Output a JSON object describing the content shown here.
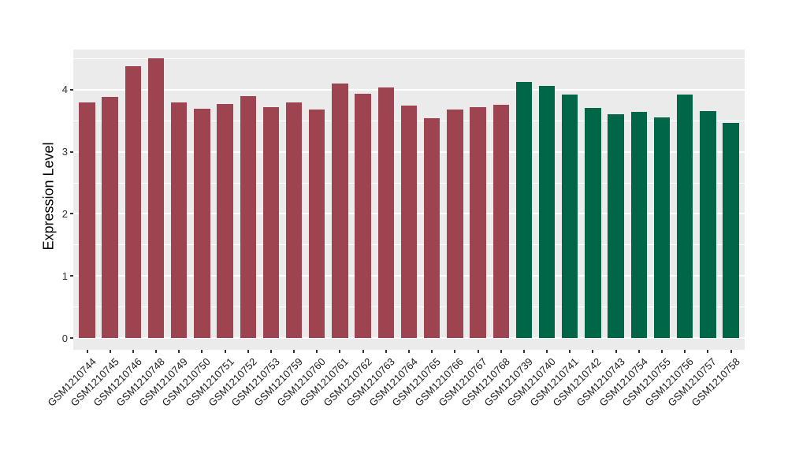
{
  "chart_data": {
    "type": "bar",
    "title": "",
    "xlabel": "",
    "ylabel": "Expression Level",
    "ylim": [
      0,
      4.65
    ],
    "yticks": [
      0,
      1,
      2,
      3,
      4
    ],
    "minor_gridlines": [
      0.5,
      1.5,
      2.5,
      3.5,
      4.5
    ],
    "grid": "on",
    "legend_position": "none",
    "panel_background": "#EBEBEB",
    "grid_color": "#FFFFFF",
    "axis_text_color": "#303030",
    "group_colors": {
      "red": "#9E4451",
      "green": "#006648"
    },
    "bars": [
      {
        "label": "GSM1210744",
        "value": 3.8,
        "group": "red"
      },
      {
        "label": "GSM1210745",
        "value": 3.88,
        "group": "red"
      },
      {
        "label": "GSM1210746",
        "value": 4.38,
        "group": "red"
      },
      {
        "label": "GSM1210748",
        "value": 4.51,
        "group": "red"
      },
      {
        "label": "GSM1210749",
        "value": 3.8,
        "group": "red"
      },
      {
        "label": "GSM1210750",
        "value": 3.69,
        "group": "red"
      },
      {
        "label": "GSM1210751",
        "value": 3.77,
        "group": "red"
      },
      {
        "label": "GSM1210752",
        "value": 3.89,
        "group": "red"
      },
      {
        "label": "GSM1210753",
        "value": 3.72,
        "group": "red"
      },
      {
        "label": "GSM1210759",
        "value": 3.8,
        "group": "red"
      },
      {
        "label": "GSM1210760",
        "value": 3.68,
        "group": "red"
      },
      {
        "label": "GSM1210761",
        "value": 4.1,
        "group": "red"
      },
      {
        "label": "GSM1210762",
        "value": 3.93,
        "group": "red"
      },
      {
        "label": "GSM1210763",
        "value": 4.03,
        "group": "red"
      },
      {
        "label": "GSM1210764",
        "value": 3.74,
        "group": "red"
      },
      {
        "label": "GSM1210765",
        "value": 3.54,
        "group": "red"
      },
      {
        "label": "GSM1210766",
        "value": 3.68,
        "group": "red"
      },
      {
        "label": "GSM1210767",
        "value": 3.72,
        "group": "red"
      },
      {
        "label": "GSM1210768",
        "value": 3.76,
        "group": "red"
      },
      {
        "label": "GSM1210739",
        "value": 4.12,
        "group": "green"
      },
      {
        "label": "GSM1210740",
        "value": 4.06,
        "group": "green"
      },
      {
        "label": "GSM1210741",
        "value": 3.92,
        "group": "green"
      },
      {
        "label": "GSM1210742",
        "value": 3.7,
        "group": "green"
      },
      {
        "label": "GSM1210743",
        "value": 3.61,
        "group": "green"
      },
      {
        "label": "GSM1210754",
        "value": 3.64,
        "group": "green"
      },
      {
        "label": "GSM1210755",
        "value": 3.55,
        "group": "green"
      },
      {
        "label": "GSM1210756",
        "value": 3.92,
        "group": "green"
      },
      {
        "label": "GSM1210757",
        "value": 3.65,
        "group": "green"
      },
      {
        "label": "GSM1210758",
        "value": 3.47,
        "group": "green"
      }
    ]
  }
}
